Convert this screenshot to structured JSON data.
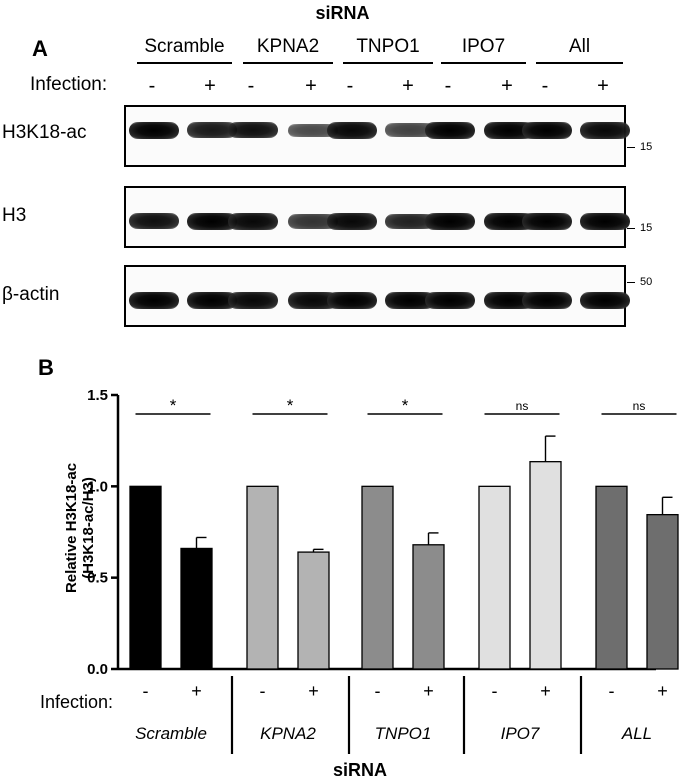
{
  "panel_a": {
    "letter": "A",
    "sirna_label": "siRNA",
    "groups": [
      "Scramble",
      "KPNA2",
      "TNPO1",
      "IPO7",
      "All"
    ],
    "infection_label": "Infection:",
    "infection_signs": [
      "-",
      "+",
      "-",
      "+",
      "-",
      "+",
      "-",
      "+",
      "-",
      "+"
    ],
    "blots": [
      {
        "label": "H3K18-ac",
        "marker": "15",
        "band_intensity": [
          1.0,
          0.85,
          0.9,
          0.55,
          0.95,
          0.6,
          1.0,
          1.0,
          1.0,
          0.95
        ]
      },
      {
        "label": "H3",
        "marker": "15",
        "band_intensity": [
          0.9,
          1.0,
          0.95,
          0.7,
          0.95,
          0.8,
          1.0,
          1.0,
          1.0,
          1.0
        ]
      },
      {
        "label": "β-actin",
        "marker": "50",
        "band_intensity": [
          1.0,
          1.0,
          0.95,
          0.95,
          1.0,
          1.0,
          1.0,
          1.0,
          1.0,
          1.0
        ]
      }
    ]
  },
  "panel_b": {
    "letter": "B",
    "infection_label": "Infection:",
    "sirna_label": "siRNA"
  },
  "chart_data": {
    "type": "bar",
    "title": "",
    "ylabel": "Relative H3K18-ac\n(H3K18-ac/H3)",
    "xlabel": "siRNA",
    "ylim": [
      0,
      1.5
    ],
    "yticks": [
      "0.0",
      "0.5",
      "1.0",
      "1.5"
    ],
    "groups": [
      {
        "name": "Scramble",
        "values": [
          1.0,
          0.66
        ],
        "errors": [
          0,
          0.06
        ],
        "color": "#000000",
        "sig": "*"
      },
      {
        "name": "KPNA2",
        "values": [
          1.0,
          0.64
        ],
        "errors": [
          0,
          0.015
        ],
        "color": "#b3b3b3",
        "sig": "*"
      },
      {
        "name": "TNPO1",
        "values": [
          1.0,
          0.68
        ],
        "errors": [
          0,
          0.065
        ],
        "color": "#8c8c8c",
        "sig": "*"
      },
      {
        "name": "IPO7",
        "values": [
          1.0,
          1.135
        ],
        "errors": [
          0,
          0.14
        ],
        "color": "#e0e0e0",
        "sig": "ns"
      },
      {
        "name": "ALL",
        "values": [
          1.0,
          0.845
        ],
        "errors": [
          0,
          0.095
        ],
        "color": "#6e6e6e",
        "sig": "ns"
      }
    ],
    "infection_signs": [
      "-",
      "+"
    ],
    "grid": false,
    "legend": "none"
  }
}
